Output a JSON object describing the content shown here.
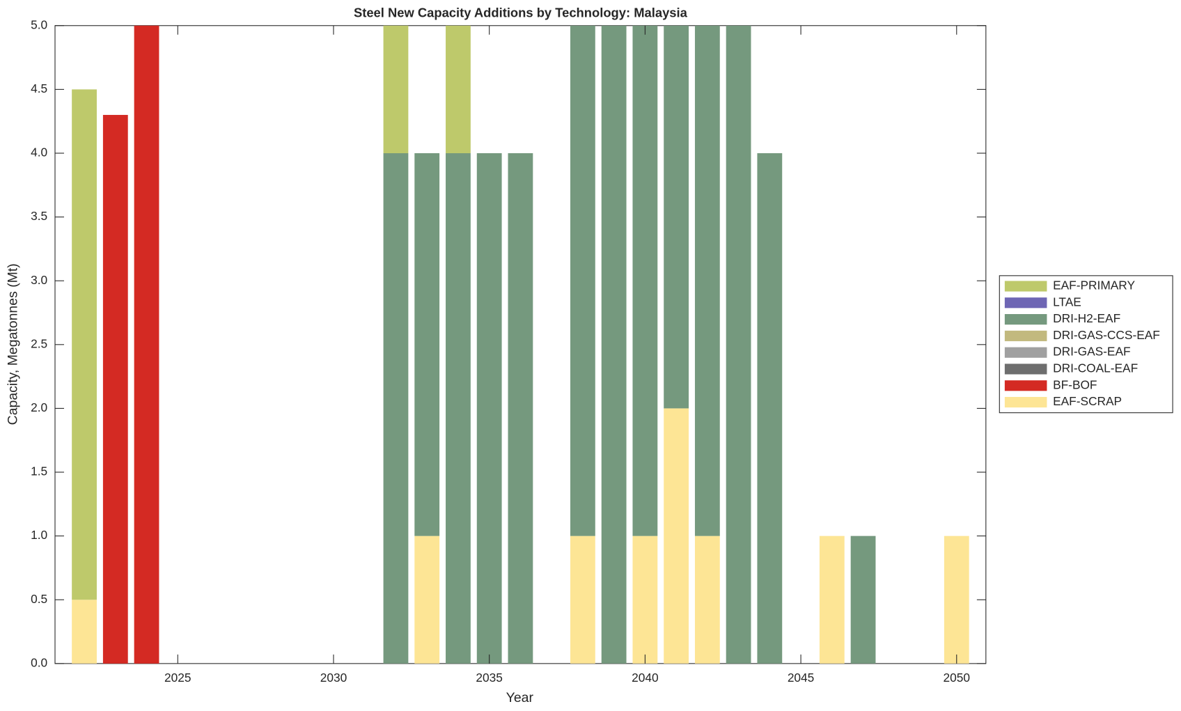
{
  "chart_data": {
    "type": "stacked-bar",
    "title": "Steel New Capacity Additions by Technology: Malaysia",
    "x_label": "Year",
    "y_label": "Capacity, Megatonnes (Mt)",
    "x": [
      2022,
      2023,
      2024,
      2032,
      2033,
      2034,
      2035,
      2036,
      2038,
      2039,
      2040,
      2041,
      2042,
      2043,
      2044,
      2046,
      2047,
      2050
    ],
    "series": [
      {
        "name": "EAF-SCRAP",
        "color": "#fde595",
        "values": [
          0.5,
          0,
          0,
          0,
          1,
          0,
          0,
          0,
          1,
          0,
          1,
          2,
          1,
          0,
          0,
          1,
          0,
          1
        ]
      },
      {
        "name": "BF-BOF",
        "color": "#d42a23",
        "values": [
          0,
          4.3,
          5,
          0,
          0,
          0,
          0,
          0,
          0,
          0,
          0,
          0,
          0,
          0,
          0,
          0,
          0,
          0
        ]
      },
      {
        "name": "DRI-COAL-EAF",
        "color": "#6e6e6e",
        "values": [
          0,
          0,
          0,
          0,
          0,
          0,
          0,
          0,
          0,
          0,
          0,
          0,
          0,
          0,
          0,
          0,
          0,
          0
        ]
      },
      {
        "name": "DRI-GAS-EAF",
        "color": "#a0a0a0",
        "values": [
          0,
          0,
          0,
          0,
          0,
          0,
          0,
          0,
          0,
          0,
          0,
          0,
          0,
          0,
          0,
          0,
          0,
          0
        ]
      },
      {
        "name": "DRI-GAS-CCS-EAF",
        "color": "#c2b97e",
        "values": [
          0,
          0,
          0,
          0,
          0,
          0,
          0,
          0,
          0,
          0,
          0,
          0,
          0,
          0,
          0,
          0,
          0,
          0
        ]
      },
      {
        "name": "DRI-H2-EAF",
        "color": "#75997e",
        "values": [
          0,
          0,
          0,
          4,
          3,
          4,
          4,
          4,
          4,
          5,
          4,
          3,
          4,
          5,
          4,
          0,
          1,
          0
        ]
      },
      {
        "name": "LTAE",
        "color": "#6e66b4",
        "values": [
          0,
          0,
          0,
          0,
          0,
          0,
          0,
          0,
          0,
          0,
          0,
          0,
          0,
          0,
          0,
          0,
          0,
          0
        ]
      },
      {
        "name": "EAF-PRIMARY",
        "color": "#bec96b",
        "values": [
          4,
          0,
          0,
          1,
          0,
          1,
          0,
          0,
          0,
          0,
          0,
          0,
          0,
          0,
          0,
          0,
          0,
          0
        ]
      }
    ],
    "xlim": [
      2021.06,
      2050.94
    ],
    "xticks": [
      2025,
      2030,
      2035,
      2040,
      2045,
      2050
    ],
    "ylim": [
      0,
      5
    ],
    "yticks": [
      {
        "value": 0,
        "label": "0.0"
      },
      {
        "value": 0.5,
        "label": "0.5"
      },
      {
        "value": 1,
        "label": "1.0"
      },
      {
        "value": 1.5,
        "label": "1.5"
      },
      {
        "value": 2,
        "label": "2.0"
      },
      {
        "value": 2.5,
        "label": "2.5"
      },
      {
        "value": 3,
        "label": "3.0"
      },
      {
        "value": 3.5,
        "label": "3.5"
      },
      {
        "value": 4,
        "label": "4.0"
      },
      {
        "value": 4.5,
        "label": "4.5"
      },
      {
        "value": 5,
        "label": "5.0"
      }
    ],
    "legend": "right"
  }
}
